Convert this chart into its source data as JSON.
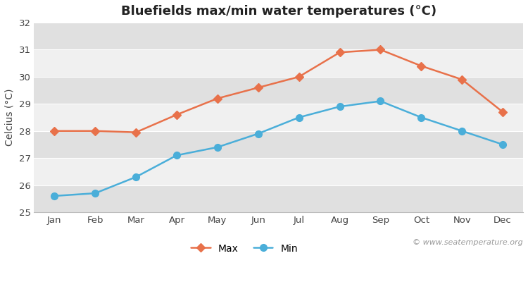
{
  "title": "Bluefields max/min water temperatures (°C)",
  "ylabel": "Celcius (°C)",
  "months": [
    "Jan",
    "Feb",
    "Mar",
    "Apr",
    "May",
    "Jun",
    "Jul",
    "Aug",
    "Sep",
    "Oct",
    "Nov",
    "Dec"
  ],
  "max_temps": [
    28.0,
    28.0,
    27.95,
    28.6,
    29.2,
    29.6,
    30.0,
    30.9,
    31.0,
    30.4,
    29.9,
    28.7
  ],
  "min_temps": [
    25.6,
    25.7,
    26.3,
    27.1,
    27.4,
    27.9,
    28.5,
    28.9,
    29.1,
    28.5,
    28.0,
    27.5
  ],
  "max_color": "#e8714a",
  "min_color": "#4aaed9",
  "figure_bg": "#ffffff",
  "plot_bg_light": "#f0f0f0",
  "plot_bg_dark": "#e0e0e0",
  "grid_color": "#ffffff",
  "ylim": [
    25,
    32
  ],
  "yticks": [
    25,
    26,
    27,
    28,
    29,
    30,
    31,
    32
  ],
  "watermark": "© www.seatemperature.org",
  "legend_max": "Max",
  "legend_min": "Min",
  "title_fontsize": 13,
  "axis_label_fontsize": 10,
  "tick_fontsize": 9.5,
  "legend_fontsize": 10,
  "watermark_fontsize": 8
}
